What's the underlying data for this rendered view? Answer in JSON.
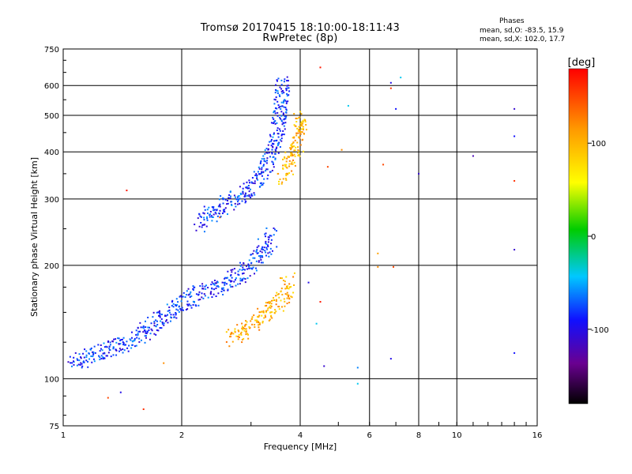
{
  "chart_data": {
    "type": "scatter",
    "title": "Tromsø 20170415 18:10:00-18:11:43",
    "subtitle": "RwPretec (8p)",
    "xlabel": "Frequency [MHz]",
    "ylabel": "Stationary phase Virtual Height [km]",
    "x_scale": "log",
    "y_scale": "log",
    "xlim": [
      1,
      16
    ],
    "ylim": [
      75,
      750
    ],
    "x_ticks": [
      "1",
      "2",
      "4",
      "6",
      "8",
      "10",
      "16"
    ],
    "x_tick_values": [
      1,
      2,
      4,
      6,
      8,
      10,
      16
    ],
    "y_ticks": [
      "75",
      "100",
      "200",
      "300",
      "400",
      "500",
      "600",
      "750"
    ],
    "y_tick_values": [
      75,
      100,
      200,
      300,
      400,
      500,
      600,
      750
    ],
    "grid": true,
    "phase_stats": {
      "header": "Phases",
      "line_o": "mean, sd,O: -83.5, 15.9",
      "line_x": "mean, sd,X: 102.0, 17.7"
    },
    "colorbar": {
      "label": "[deg]",
      "range": [
        -180,
        180
      ],
      "ticks": [
        "100",
        "0",
        "-100"
      ],
      "tick_values": [
        100,
        0,
        -100
      ],
      "colormap": "rainbow: black(-180) violet blue cyan green yellow orange red(+180)"
    },
    "traces": [
      {
        "mode": "O",
        "layer": "E/F1",
        "phase_mean": -83.5,
        "points": [
          [
            1.05,
            113
          ],
          [
            1.1,
            112
          ],
          [
            1.2,
            116
          ],
          [
            1.3,
            119
          ],
          [
            1.4,
            122
          ],
          [
            1.5,
            127
          ],
          [
            1.6,
            133
          ],
          [
            1.7,
            139
          ],
          [
            1.8,
            145
          ],
          [
            1.9,
            152
          ],
          [
            2.0,
            158
          ],
          [
            2.1,
            163
          ],
          [
            2.2,
            167
          ],
          [
            2.35,
            171
          ],
          [
            2.5,
            176
          ],
          [
            2.6,
            180
          ],
          [
            2.75,
            186
          ],
          [
            2.9,
            193
          ],
          [
            3.0,
            200
          ],
          [
            3.1,
            208
          ],
          [
            3.2,
            218
          ],
          [
            3.3,
            228
          ],
          [
            3.4,
            240
          ]
        ]
      },
      {
        "mode": "O",
        "layer": "F2",
        "phase_mean": -83.5,
        "points": [
          [
            2.2,
            255
          ],
          [
            2.3,
            265
          ],
          [
            2.45,
            280
          ],
          [
            2.6,
            292
          ],
          [
            2.75,
            302
          ],
          [
            2.9,
            315
          ],
          [
            3.0,
            325
          ],
          [
            3.1,
            338
          ],
          [
            3.2,
            355
          ],
          [
            3.3,
            378
          ],
          [
            3.4,
            405
          ],
          [
            3.5,
            450
          ],
          [
            3.55,
            500
          ],
          [
            3.6,
            560
          ],
          [
            3.6,
            620
          ]
        ]
      },
      {
        "mode": "X",
        "layer": "F1",
        "phase_mean": 102.0,
        "points": [
          [
            2.65,
            128
          ],
          [
            2.8,
            132
          ],
          [
            2.95,
            137
          ],
          [
            3.1,
            142
          ],
          [
            3.25,
            147
          ],
          [
            3.4,
            153
          ],
          [
            3.55,
            160
          ],
          [
            3.65,
            168
          ],
          [
            3.7,
            176
          ],
          [
            3.75,
            182
          ]
        ]
      },
      {
        "mode": "X",
        "layer": "F2",
        "phase_mean": 102.0,
        "points": [
          [
            3.6,
            340
          ],
          [
            3.7,
            360
          ],
          [
            3.8,
            385
          ],
          [
            3.9,
            410
          ],
          [
            3.95,
            440
          ],
          [
            4.0,
            470
          ],
          [
            4.0,
            500
          ]
        ]
      }
    ],
    "sporadic_points": [
      {
        "x": 1.3,
        "y": 89,
        "phase": 150
      },
      {
        "x": 1.6,
        "y": 83,
        "phase": 160
      },
      {
        "x": 1.4,
        "y": 92,
        "phase": -100
      },
      {
        "x": 1.45,
        "y": 316,
        "phase": 170
      },
      {
        "x": 4.5,
        "y": 670,
        "phase": 170
      },
      {
        "x": 6.8,
        "y": 610,
        "phase": -100
      },
      {
        "x": 7.2,
        "y": 630,
        "phase": -40
      },
      {
        "x": 7.0,
        "y": 520,
        "phase": -90
      },
      {
        "x": 5.3,
        "y": 530,
        "phase": -40
      },
      {
        "x": 5.1,
        "y": 405,
        "phase": 120
      },
      {
        "x": 4.7,
        "y": 365,
        "phase": 150
      },
      {
        "x": 6.5,
        "y": 370,
        "phase": 150
      },
      {
        "x": 6.8,
        "y": 590,
        "phase": 160
      },
      {
        "x": 8.0,
        "y": 350,
        "phase": -110
      },
      {
        "x": 11.0,
        "y": 390,
        "phase": -120
      },
      {
        "x": 14.0,
        "y": 520,
        "phase": -110
      },
      {
        "x": 14.0,
        "y": 440,
        "phase": -90
      },
      {
        "x": 14.0,
        "y": 335,
        "phase": 160
      },
      {
        "x": 14.0,
        "y": 220,
        "phase": -110
      },
      {
        "x": 14.0,
        "y": 117,
        "phase": -90
      },
      {
        "x": 6.3,
        "y": 215,
        "phase": 110
      },
      {
        "x": 6.3,
        "y": 198,
        "phase": 120
      },
      {
        "x": 6.9,
        "y": 198,
        "phase": 150
      },
      {
        "x": 4.5,
        "y": 160,
        "phase": 170
      },
      {
        "x": 4.4,
        "y": 140,
        "phase": -40
      },
      {
        "x": 4.2,
        "y": 180,
        "phase": -100
      },
      {
        "x": 4.6,
        "y": 108,
        "phase": -110
      },
      {
        "x": 5.6,
        "y": 107,
        "phase": -60
      },
      {
        "x": 5.6,
        "y": 97,
        "phase": -40
      },
      {
        "x": 6.8,
        "y": 113,
        "phase": -100
      },
      {
        "x": 2.5,
        "y": 268,
        "phase": 140
      },
      {
        "x": 1.8,
        "y": 110,
        "phase": 120
      }
    ]
  }
}
